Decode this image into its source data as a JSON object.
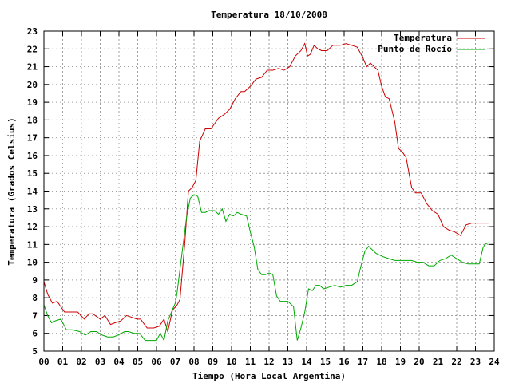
{
  "chart_data": {
    "type": "line",
    "title": "Temperatura 18/10/2008",
    "xlabel": "Tiempo (Hora Local Argentina)",
    "ylabel": "Temperatura (Grados Celsius)",
    "xlim": [
      0,
      24
    ],
    "ylim": [
      5,
      23
    ],
    "x_ticks": [
      "00",
      "01",
      "02",
      "03",
      "04",
      "05",
      "06",
      "07",
      "08",
      "09",
      "10",
      "11",
      "12",
      "13",
      "14",
      "15",
      "16",
      "17",
      "18",
      "19",
      "20",
      "21",
      "22",
      "23",
      "24"
    ],
    "y_ticks": [
      "5",
      "6",
      "7",
      "8",
      "9",
      "10",
      "11",
      "12",
      "13",
      "14",
      "15",
      "16",
      "17",
      "18",
      "19",
      "20",
      "21",
      "22",
      "23"
    ],
    "grid": true,
    "legend_position": "top-right",
    "series": [
      {
        "name": "Temperatura",
        "color": "#cc0000",
        "x": [
          0.0,
          0.2,
          0.45,
          0.7,
          1.1,
          1.3,
          1.8,
          2.15,
          2.4,
          2.6,
          3.0,
          3.25,
          3.55,
          3.8,
          4.1,
          4.4,
          4.7,
          4.95,
          5.15,
          5.5,
          5.85,
          6.15,
          6.4,
          6.6,
          6.85,
          7.1,
          7.25,
          7.5,
          7.7,
          7.9,
          8.1,
          8.3,
          8.6,
          8.9,
          9.3,
          9.6,
          9.9,
          10.2,
          10.5,
          10.7,
          11.0,
          11.3,
          11.6,
          11.9,
          12.2,
          12.5,
          12.8,
          13.1,
          13.4,
          13.7,
          13.9,
          14.05,
          14.2,
          14.4,
          14.6,
          14.8,
          15.1,
          15.4,
          15.8,
          16.1,
          16.4,
          16.7,
          17.0,
          17.2,
          17.4,
          17.6,
          17.8,
          18.0,
          18.2,
          18.4,
          18.7,
          18.9,
          19.1,
          19.3,
          19.6,
          19.8,
          20.1,
          20.4,
          20.7,
          21.0,
          21.3,
          21.6,
          21.9,
          22.2,
          22.5,
          22.8,
          23.2,
          23.4,
          23.5,
          23.7
        ],
        "values": [
          8.9,
          8.2,
          7.7,
          7.8,
          7.2,
          7.2,
          7.2,
          6.8,
          7.1,
          7.1,
          6.8,
          7.0,
          6.5,
          6.6,
          6.7,
          7.0,
          6.9,
          6.8,
          6.8,
          6.3,
          6.3,
          6.4,
          6.8,
          6.1,
          7.3,
          7.6,
          7.9,
          11.0,
          14.0,
          14.2,
          14.6,
          16.8,
          17.5,
          17.5,
          18.1,
          18.3,
          18.6,
          19.2,
          19.6,
          19.6,
          19.9,
          20.3,
          20.4,
          20.8,
          20.8,
          20.9,
          20.8,
          21.0,
          21.6,
          21.9,
          22.3,
          21.6,
          21.7,
          22.2,
          22.0,
          21.9,
          21.9,
          22.2,
          22.2,
          22.3,
          22.2,
          22.1,
          21.5,
          21.0,
          21.2,
          21.0,
          20.8,
          19.9,
          19.3,
          19.2,
          17.9,
          16.4,
          16.2,
          15.9,
          14.2,
          13.9,
          13.9,
          13.3,
          12.9,
          12.7,
          12.0,
          11.8,
          11.7,
          11.5,
          12.1,
          12.2,
          12.2,
          12.2,
          12.2,
          12.2
        ]
      },
      {
        "name": "Punto de Rocío",
        "color": "#00aa00",
        "x": [
          0.0,
          0.2,
          0.4,
          0.6,
          0.9,
          1.2,
          1.5,
          1.9,
          2.2,
          2.5,
          2.8,
          3.1,
          3.4,
          3.7,
          3.95,
          4.3,
          4.5,
          4.8,
          5.1,
          5.4,
          5.7,
          6.0,
          6.2,
          6.4,
          6.6,
          6.8,
          7.0,
          7.1,
          7.3,
          7.6,
          7.8,
          8.0,
          8.2,
          8.4,
          8.6,
          8.8,
          9.1,
          9.3,
          9.5,
          9.7,
          9.9,
          10.1,
          10.3,
          10.5,
          10.8,
          11.0,
          11.1,
          11.2,
          11.4,
          11.6,
          11.8,
          12.0,
          12.2,
          12.4,
          12.6,
          12.8,
          13.0,
          13.3,
          13.5,
          13.7,
          13.9,
          14.1,
          14.3,
          14.5,
          14.7,
          14.9,
          15.2,
          15.5,
          15.8,
          16.1,
          16.4,
          16.7,
          16.9,
          17.1,
          17.3,
          17.5,
          17.7,
          17.9,
          18.1,
          18.4,
          18.7,
          19.0,
          19.3,
          19.6,
          19.9,
          20.2,
          20.5,
          20.8,
          21.1,
          21.4,
          21.7,
          22.0,
          22.3,
          22.6,
          22.9,
          23.2,
          23.4,
          23.5,
          23.7
        ],
        "values": [
          7.6,
          7.0,
          6.6,
          6.7,
          6.8,
          6.2,
          6.2,
          6.1,
          5.9,
          6.1,
          6.1,
          5.9,
          5.8,
          5.8,
          5.9,
          6.1,
          6.1,
          6.0,
          6.0,
          5.6,
          5.6,
          5.6,
          6.0,
          5.6,
          6.7,
          7.2,
          7.7,
          8.3,
          10.0,
          12.5,
          13.6,
          13.8,
          13.7,
          12.8,
          12.8,
          12.9,
          12.9,
          12.7,
          13.0,
          12.3,
          12.7,
          12.6,
          12.8,
          12.7,
          12.6,
          11.7,
          11.3,
          10.9,
          9.6,
          9.3,
          9.3,
          9.4,
          9.3,
          8.1,
          7.8,
          7.8,
          7.8,
          7.5,
          5.6,
          6.3,
          7.2,
          8.5,
          8.4,
          8.7,
          8.7,
          8.5,
          8.6,
          8.7,
          8.6,
          8.7,
          8.7,
          8.9,
          9.8,
          10.6,
          10.9,
          10.7,
          10.5,
          10.4,
          10.3,
          10.2,
          10.1,
          10.1,
          10.1,
          10.1,
          10.0,
          10.0,
          9.8,
          9.8,
          10.1,
          10.2,
          10.4,
          10.2,
          10.0,
          9.9,
          9.9,
          9.9,
          10.8,
          11.0,
          11.1
        ]
      }
    ]
  }
}
